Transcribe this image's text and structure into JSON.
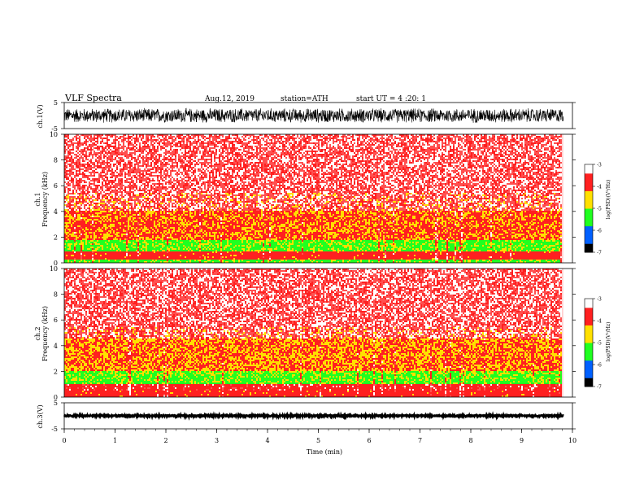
{
  "header": {
    "title": "VLF  Spectra",
    "date": "Aug.12, 2019",
    "station": "station=ATH",
    "start": "start  UT  =   4  :20: 1"
  },
  "chart_data": {
    "type": "heatmap",
    "title": "VLF  Spectra",
    "x": {
      "label": "Time  (min)",
      "range": [
        0,
        10
      ],
      "ticks": [
        0,
        1,
        2,
        3,
        4,
        5,
        6,
        7,
        8,
        9,
        10
      ],
      "data_end": 9.82
    },
    "panels": [
      {
        "name": "ch.1",
        "kind": "waveform",
        "ylabel": "ch.1(V)",
        "ylim": [
          -5,
          5
        ],
        "ticks": [
          5,
          -5
        ],
        "approx_amplitude": 3
      },
      {
        "name": "ch.1",
        "kind": "spectrogram",
        "ylabel": "Frequency  (kHz)",
        "ch_label": "ch.1",
        "ylim": [
          0,
          10
        ],
        "ticks": [
          0,
          2,
          4,
          6,
          8,
          10
        ],
        "bands_khz": [
          {
            "from": 0,
            "to": 0.3,
            "level": -5
          },
          {
            "from": 0.3,
            "to": 0.9,
            "level": -4
          },
          {
            "from": 0.9,
            "to": 1.8,
            "level": -5
          },
          {
            "from": 1.8,
            "to": 4.0,
            "level": -4.2
          },
          {
            "from": 4.0,
            "to": 10,
            "level": -3.3
          }
        ],
        "colorbar": {
          "label": "log(PSD)(V²/Hz)",
          "range": [
            -7,
            -3
          ],
          "ticks": [
            -3,
            -4,
            -5,
            -6,
            -7
          ]
        }
      },
      {
        "name": "ch.2",
        "kind": "spectrogram",
        "ylabel": "Frequency  (kHz)",
        "ch_label": "ch.2",
        "ylim": [
          0,
          10
        ],
        "ticks": [
          0,
          2,
          4,
          6,
          8,
          10
        ],
        "bands_khz": [
          {
            "from": 0,
            "to": 0.5,
            "level": -4
          },
          {
            "from": 0.5,
            "to": 1.0,
            "level": -3.8
          },
          {
            "from": 1.0,
            "to": 2.0,
            "level": -5
          },
          {
            "from": 2.0,
            "to": 4.5,
            "level": -4.3
          },
          {
            "from": 4.5,
            "to": 10,
            "level": -3.3
          }
        ],
        "colorbar": {
          "label": "log(PSD)(V²/Hz)",
          "range": [
            -7,
            -3
          ],
          "ticks": [
            -3,
            -4,
            -5,
            -6,
            -7
          ]
        }
      },
      {
        "name": "ch.3",
        "kind": "waveform",
        "ylabel": "ch.3(V)",
        "ylim": [
          -5,
          5
        ],
        "ticks": [
          5,
          -5
        ],
        "approx_amplitude": 0.3
      }
    ],
    "colors": {
      "high": "#ff2020",
      "mid_high": "#ffe000",
      "mid": "#20ff20",
      "low": "#0060ff",
      "lowest": "#000000"
    }
  }
}
